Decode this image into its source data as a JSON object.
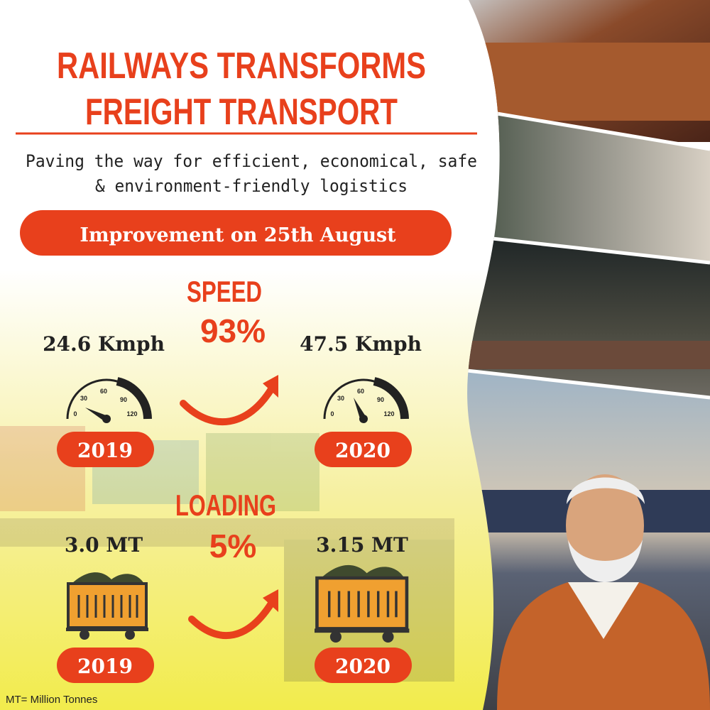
{
  "header": {
    "title_lines": [
      "RAILWAYS TRANSFORMS",
      "FREIGHT TRANSPORT"
    ],
    "subtitle_lines": [
      "Paving the way for efficient, economical, safe",
      "& environment-friendly logistics"
    ]
  },
  "banner": "Improvement on 25th August",
  "speed": {
    "label": "SPEED",
    "change": "93%",
    "before": "24.6 Kmph",
    "after": "47.5 Kmph",
    "before_year": "2019",
    "after_year": "2020",
    "gauge_ticks": [
      "0",
      "30",
      "60",
      "90",
      "120"
    ]
  },
  "loading": {
    "label": "LOADING",
    "change": "5%",
    "before": "3.0 MT",
    "after": "3.15 MT",
    "before_year": "2019",
    "after_year": "2020"
  },
  "footnote": "MT= Million Tonnes"
}
